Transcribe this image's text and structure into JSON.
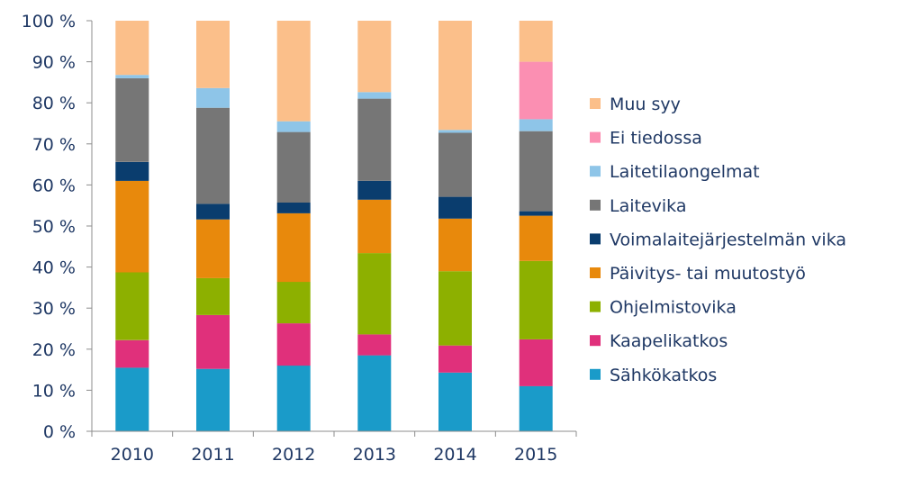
{
  "chart_data": {
    "type": "bar",
    "stacked": true,
    "categories": [
      "2010",
      "2011",
      "2012",
      "2013",
      "2014",
      "2015"
    ],
    "ylim": [
      0,
      100
    ],
    "yticks": [
      0,
      10,
      20,
      30,
      40,
      50,
      60,
      70,
      80,
      90,
      100
    ],
    "ytick_labels": [
      "0 %",
      "10 %",
      "20 %",
      "30 %",
      "40 %",
      "50 %",
      "60 %",
      "70 %",
      "80 %",
      "90 %",
      "100 %"
    ],
    "grid": false,
    "legend_position": "right",
    "series": [
      {
        "name": "Sähkökatkos",
        "color": "#1a9bc9",
        "values": [
          15.5,
          15.2,
          16.0,
          18.5,
          14.3,
          11.0
        ]
      },
      {
        "name": "Kaapelikatkos",
        "color": "#e0307b",
        "values": [
          6.7,
          13.1,
          10.3,
          5.1,
          6.6,
          11.4
        ]
      },
      {
        "name": "Ohjelmistovika",
        "color": "#8db000",
        "values": [
          16.5,
          9.0,
          10.1,
          19.8,
          18.1,
          19.1
        ]
      },
      {
        "name": "Päivitys- tai muutostyö",
        "color": "#e8890c",
        "values": [
          22.3,
          14.3,
          16.7,
          13.0,
          12.8,
          11.0
        ]
      },
      {
        "name": "Voimalaitejärjestelmän vika",
        "color": "#0a3d6e",
        "values": [
          4.6,
          3.8,
          2.6,
          4.6,
          5.3,
          1.1
        ]
      },
      {
        "name": "Laitevika",
        "color": "#767676",
        "values": [
          20.4,
          23.4,
          17.2,
          20.0,
          15.6,
          19.5
        ]
      },
      {
        "name": "Laitetilaongelmat",
        "color": "#8ec5e8",
        "values": [
          0.8,
          4.8,
          2.6,
          1.6,
          0.7,
          2.9
        ]
      },
      {
        "name": "Ei tiedossa",
        "color": "#fb8fb2",
        "values": [
          0,
          0,
          0,
          0,
          0,
          14.0
        ]
      },
      {
        "name": "Muu syy",
        "color": "#fbbf8a",
        "values": [
          13.2,
          16.4,
          24.5,
          17.4,
          26.6,
          10.0
        ]
      }
    ]
  }
}
